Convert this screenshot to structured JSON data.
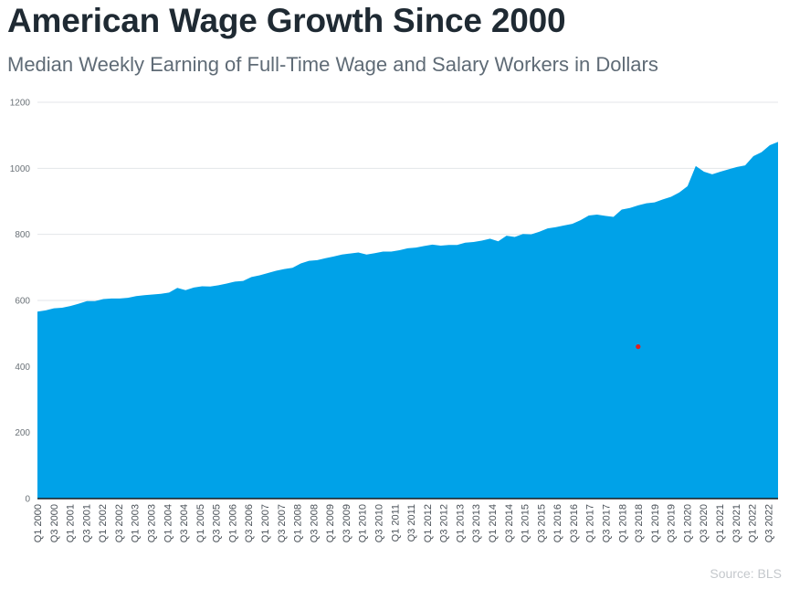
{
  "chart_data": {
    "type": "area",
    "title": "American Wage Growth Since 2000",
    "subtitle": "Median Weekly Earning of Full-Time Wage and Salary Workers in Dollars",
    "source": "Source: BLS",
    "xlabel": "",
    "ylabel": "",
    "ylim": [
      0,
      1200
    ],
    "yticks": [
      0,
      200,
      400,
      600,
      800,
      1000,
      1200
    ],
    "grid": true,
    "legend": "none",
    "colors": {
      "area": "#00a2e8",
      "grid": "#e3e6e8",
      "baseline": "#1a1a1a",
      "marker": "#e02020"
    },
    "x_tick_labels": [
      "Q1 2000",
      "Q3 2000",
      "Q1 2001",
      "Q3 2001",
      "Q1 2002",
      "Q3 2002",
      "Q1 2003",
      "Q3 2003",
      "Q1 2004",
      "Q3 2004",
      "Q1 2005",
      "Q3 2005",
      "Q1 2006",
      "Q3 2006",
      "Q1 2007",
      "Q3 2007",
      "Q1 2008",
      "Q3 2008",
      "Q1 2009",
      "Q3 2009",
      "Q1 2010",
      "Q3 2010",
      "Q1 2011",
      "Q3 2011",
      "Q1 2012",
      "Q3 2012",
      "Q1 2013",
      "Q3 2013",
      "Q1 2014",
      "Q3 2014",
      "Q1 2015",
      "Q3 2015",
      "Q1 2016",
      "Q3 2016",
      "Q1 2017",
      "Q3 2017",
      "Q1 2018",
      "Q3 2018",
      "Q1 2019",
      "Q3 2019",
      "Q1 2020",
      "Q3 2020",
      "Q1 2021",
      "Q3 2021",
      "Q1 2022",
      "Q3 2022"
    ],
    "series": [
      {
        "values": [
          566,
          570,
          576,
          578,
          583,
          590,
          598,
          598,
          604,
          606,
          606,
          608,
          613,
          616,
          618,
          620,
          624,
          638,
          631,
          639,
          643,
          642,
          646,
          651,
          657,
          659,
          671,
          676,
          683,
          690,
          695,
          699,
          712,
          720,
          722,
          728,
          733,
          739,
          742,
          745,
          739,
          743,
          748,
          748,
          752,
          758,
          760,
          765,
          769,
          766,
          768,
          768,
          775,
          777,
          781,
          787,
          779,
          796,
          792,
          801,
          800,
          808,
          818,
          822,
          827,
          832,
          843,
          857,
          860,
          856,
          853,
          875,
          880,
          888,
          894,
          897,
          906,
          914,
          927,
          946,
          1007,
          990,
          982,
          990,
          997,
          1004,
          1009,
          1037,
          1049,
          1070,
          1080
        ]
      }
    ],
    "annotations": [
      {
        "type": "point",
        "x_index": 73,
        "y": 460
      }
    ]
  }
}
